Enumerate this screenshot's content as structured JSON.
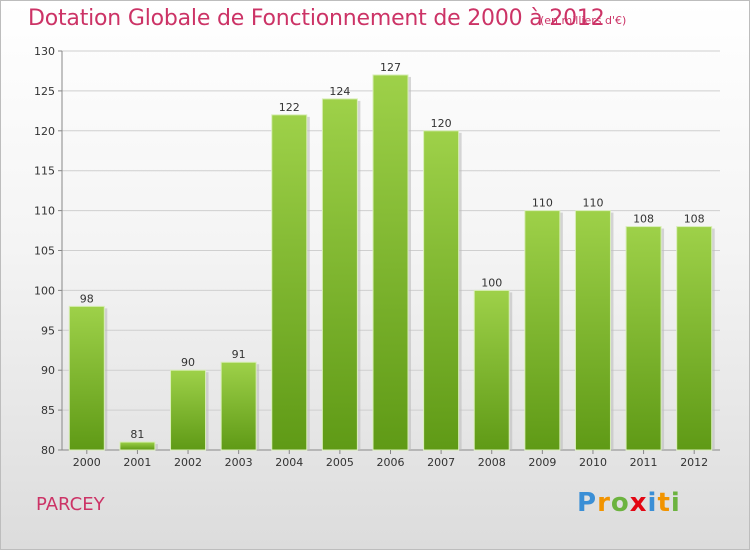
{
  "chart_data": {
    "type": "bar",
    "title": "Dotation Globale de Fonctionnement de 2000 à 2012",
    "subtitle": "(en milliers d'€)",
    "categories": [
      "2000",
      "2001",
      "2002",
      "2003",
      "2004",
      "2005",
      "2006",
      "2007",
      "2008",
      "2009",
      "2010",
      "2011",
      "2012"
    ],
    "values": [
      98,
      81,
      90,
      91,
      122,
      124,
      127,
      120,
      100,
      110,
      110,
      108,
      108
    ],
    "ylim": [
      80,
      130
    ],
    "yticks": [
      80,
      85,
      90,
      95,
      100,
      105,
      110,
      115,
      120,
      125,
      130
    ],
    "grid": true,
    "bar_color_top": "#9ed149",
    "bar_color_bottom": "#5f9a16"
  },
  "footer": {
    "place": "PARCEY",
    "logo_letters": [
      "P",
      "r",
      "o",
      "x",
      "i",
      "t",
      "i"
    ],
    "logo_colors": [
      "#3b8fd6",
      "#f29400",
      "#6cb33f",
      "#e30613",
      "#3b8fd6",
      "#f29400",
      "#6cb33f"
    ]
  }
}
